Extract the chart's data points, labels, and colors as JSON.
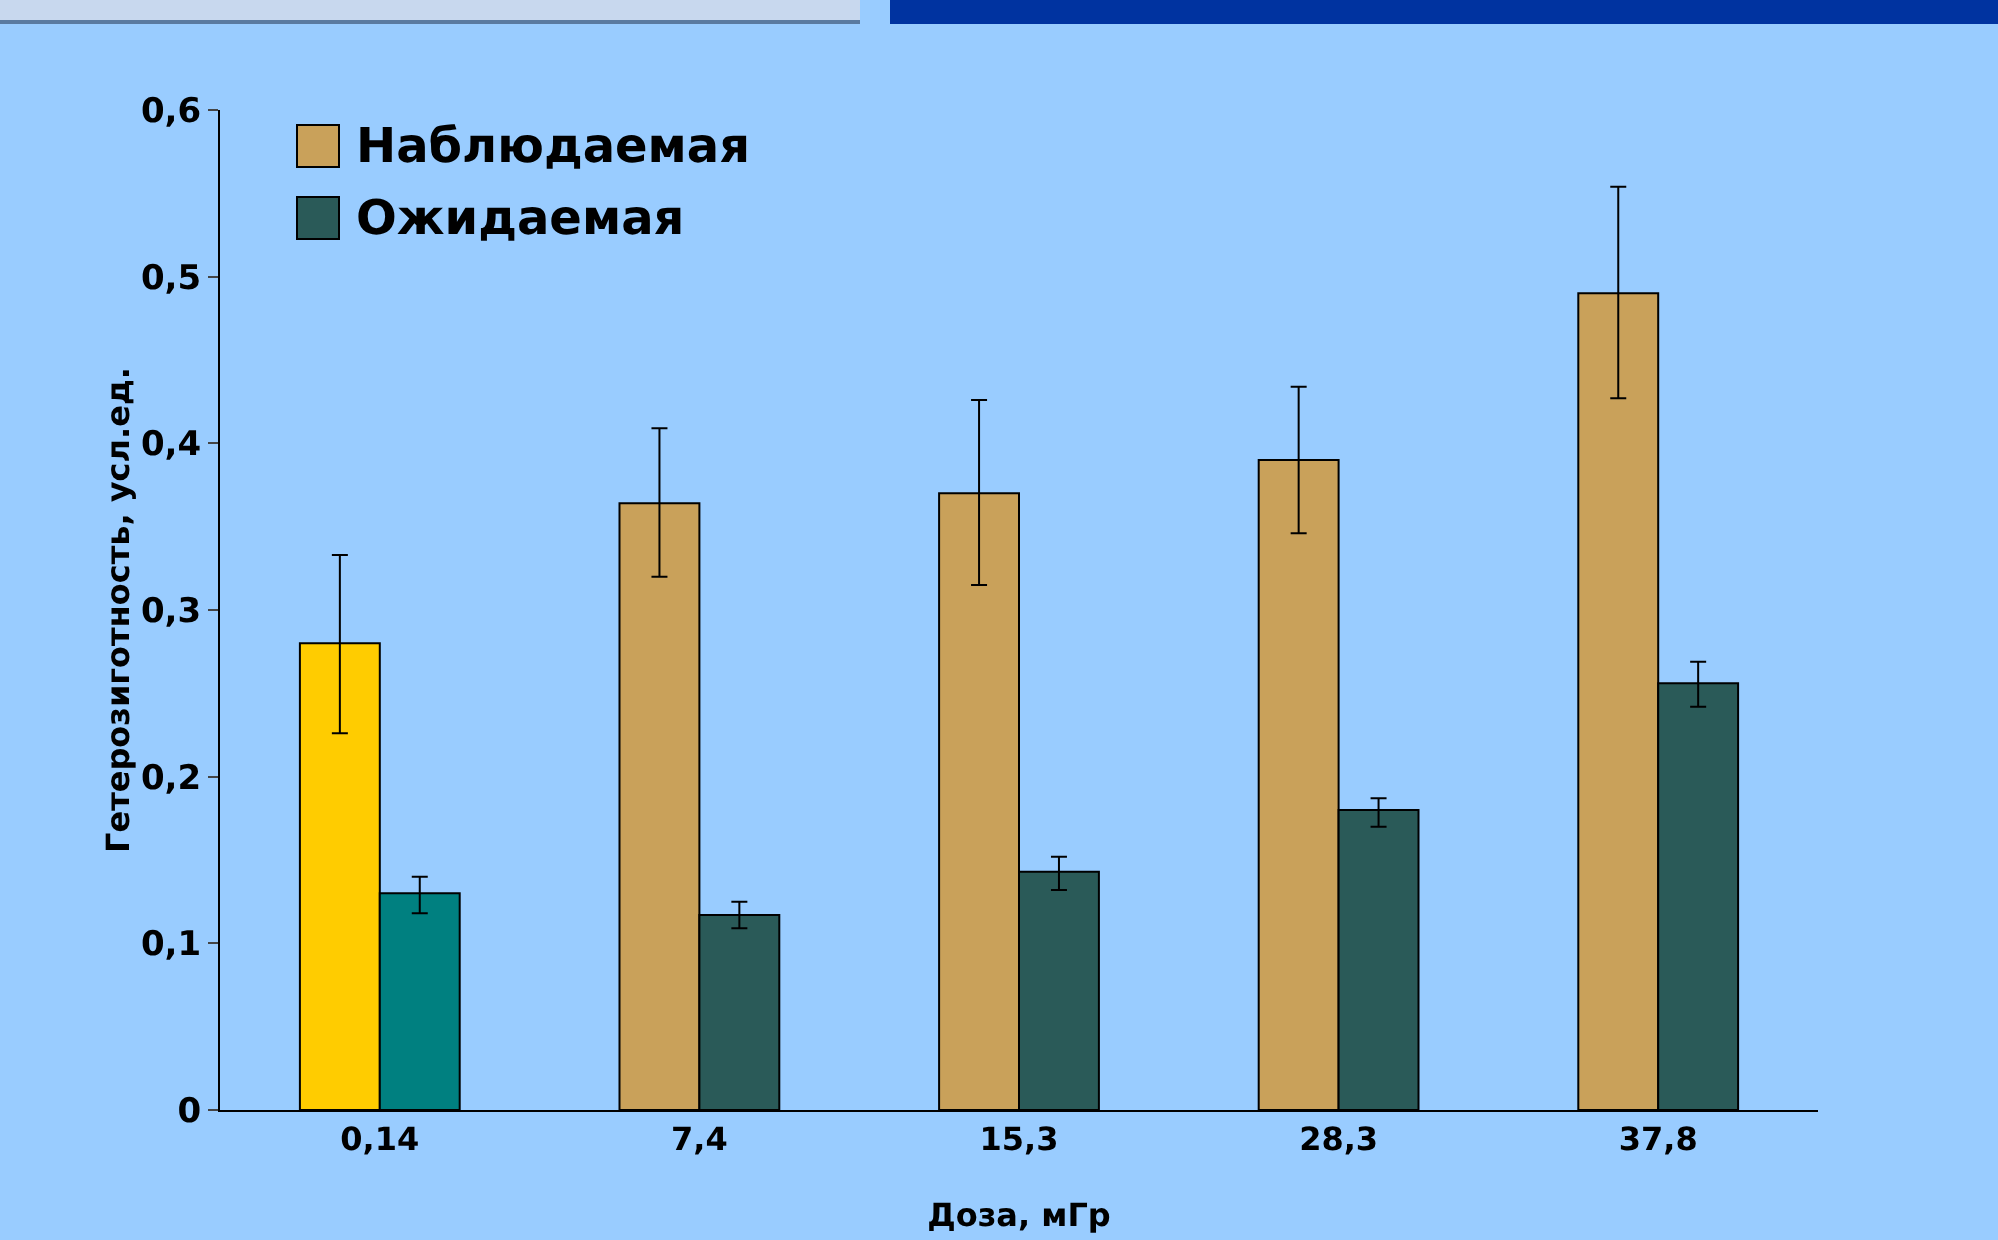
{
  "chart_data": {
    "type": "bar",
    "xlabel": "Доза, мГр",
    "ylabel": "Гетерозиготность, усл.ед.",
    "categories": [
      "0,14",
      "7,4",
      "15,3",
      "28,3",
      "37,8"
    ],
    "series": [
      {
        "name": "Наблюдаемая",
        "color": "#c9a15a",
        "colors": [
          "#ffcc00",
          "#c9a15a",
          "#c9a15a",
          "#c9a15a",
          "#c9a15a"
        ],
        "values": [
          0.28,
          0.364,
          0.37,
          0.39,
          0.49
        ],
        "errors": [
          [
            0.226,
            0.333
          ],
          [
            0.32,
            0.409
          ],
          [
            0.315,
            0.426
          ],
          [
            0.346,
            0.434
          ],
          [
            0.427,
            0.554
          ]
        ]
      },
      {
        "name": "Ожидаемая",
        "color": "#2a5a58",
        "colors": [
          "#008080",
          "#2a5a58",
          "#2a5a58",
          "#2a5a58",
          "#2a5a58"
        ],
        "values": [
          0.13,
          0.117,
          0.143,
          0.18,
          0.256
        ],
        "errors": [
          [
            0.118,
            0.14
          ],
          [
            0.109,
            0.125
          ],
          [
            0.132,
            0.152
          ],
          [
            0.17,
            0.187
          ],
          [
            0.242,
            0.269
          ]
        ]
      }
    ],
    "ylim": [
      0,
      0.6
    ],
    "yticks": [
      {
        "value": 0,
        "label": "0"
      },
      {
        "value": 0.1,
        "label": "0,1"
      },
      {
        "value": 0.2,
        "label": "0,2"
      },
      {
        "value": 0.3,
        "label": "0,3"
      },
      {
        "value": 0.4,
        "label": "0,4"
      },
      {
        "value": 0.5,
        "label": "0,5"
      },
      {
        "value": 0.6,
        "label": "0,6"
      }
    ],
    "grid": false,
    "legend": "top left"
  }
}
